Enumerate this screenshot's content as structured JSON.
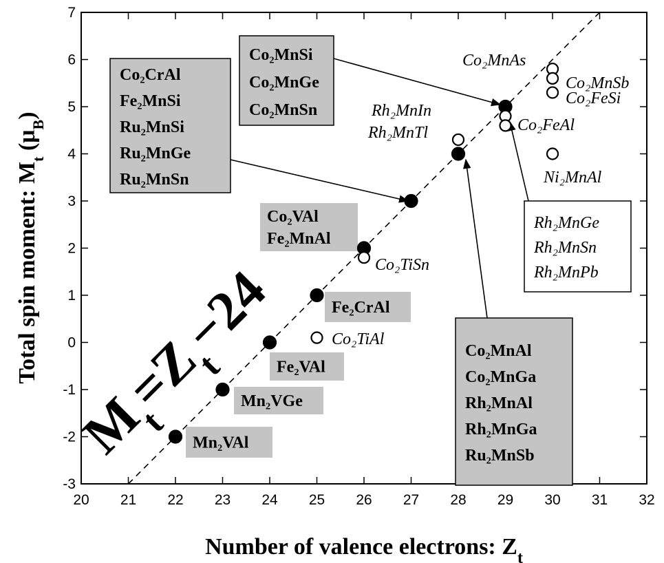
{
  "chart_data": {
    "type": "scatter",
    "xlabel": [
      "Number of valence electrons: Z",
      "t"
    ],
    "ylabel": [
      "Total spin moment: M",
      "t",
      " (μ",
      "B",
      ")"
    ],
    "formula": [
      "M",
      "t",
      "=Z",
      "t",
      "−24"
    ],
    "xlim": [
      20,
      32
    ],
    "ylim": [
      -3,
      7
    ],
    "xticks": [
      20,
      21,
      22,
      23,
      24,
      25,
      26,
      27,
      28,
      29,
      30,
      31,
      32
    ],
    "yticks": [
      -3,
      -2,
      -1,
      0,
      1,
      2,
      3,
      4,
      5,
      6,
      7
    ],
    "guide": {
      "x": [
        21,
        31
      ],
      "values": [
        -3,
        7
      ],
      "dashed": true
    },
    "series": [
      {
        "marker": "filled",
        "color": "#000000",
        "x": [
          22,
          23,
          24,
          25,
          26,
          27,
          28,
          29
        ],
        "values": [
          -2,
          -1,
          0,
          1,
          2,
          3,
          4,
          5
        ]
      },
      {
        "marker": "open",
        "color": "#000000",
        "x": [
          25,
          26,
          28,
          29,
          29,
          30,
          30,
          30,
          30
        ],
        "values": [
          0.1,
          1.8,
          4.3,
          4.8,
          4.6,
          5.8,
          5.6,
          5.3,
          4.0
        ]
      }
    ],
    "annotations": [
      {
        "style": "gray-box",
        "lines": [
          "Co₂MnSi",
          "Co₂MnGe",
          "Co₂MnSn"
        ]
      },
      {
        "style": "gray-box",
        "lines": [
          "Co₂CrAl",
          "Fe₂MnSi",
          "Ru₂MnSi",
          "Ru₂MnGe",
          "Ru₂MnSn"
        ]
      },
      {
        "style": "gray-label",
        "lines": [
          "Co₂VAl",
          "Fe₂MnAl"
        ]
      },
      {
        "style": "gray-label",
        "lines": [
          "Fe₂CrAl"
        ]
      },
      {
        "style": "gray-label",
        "lines": [
          "Fe₂VAl"
        ]
      },
      {
        "style": "gray-label",
        "lines": [
          "Mn₂VGe"
        ]
      },
      {
        "style": "gray-label",
        "lines": [
          "Mn₂VAl"
        ]
      },
      {
        "style": "gray-box",
        "lines": [
          "Co₂MnAl",
          "Co₂MnGa",
          "Rh₂MnAl",
          "Rh₂MnGa",
          "Ru₂MnSb"
        ]
      },
      {
        "style": "white-box",
        "lines": [
          "Rh₂MnGe",
          "Rh₂MnSn",
          "Rh₂MnPb"
        ]
      },
      {
        "style": "italic",
        "lines": [
          "Co₂MnAs"
        ]
      },
      {
        "style": "italic",
        "lines": [
          "Co₂MnSb"
        ]
      },
      {
        "style": "italic",
        "lines": [
          "Co₂FeSi"
        ]
      },
      {
        "style": "italic",
        "lines": [
          "Rh₂MnIn"
        ]
      },
      {
        "style": "italic",
        "lines": [
          "Rh₂MnTl"
        ]
      },
      {
        "style": "italic",
        "lines": [
          "Co₂FeAl"
        ]
      },
      {
        "style": "italic",
        "lines": [
          "Ni₂MnAl"
        ]
      },
      {
        "style": "italic",
        "lines": [
          "Co₂TiSn"
        ]
      },
      {
        "style": "italic",
        "lines": [
          "Co₂TiAl"
        ]
      }
    ]
  }
}
